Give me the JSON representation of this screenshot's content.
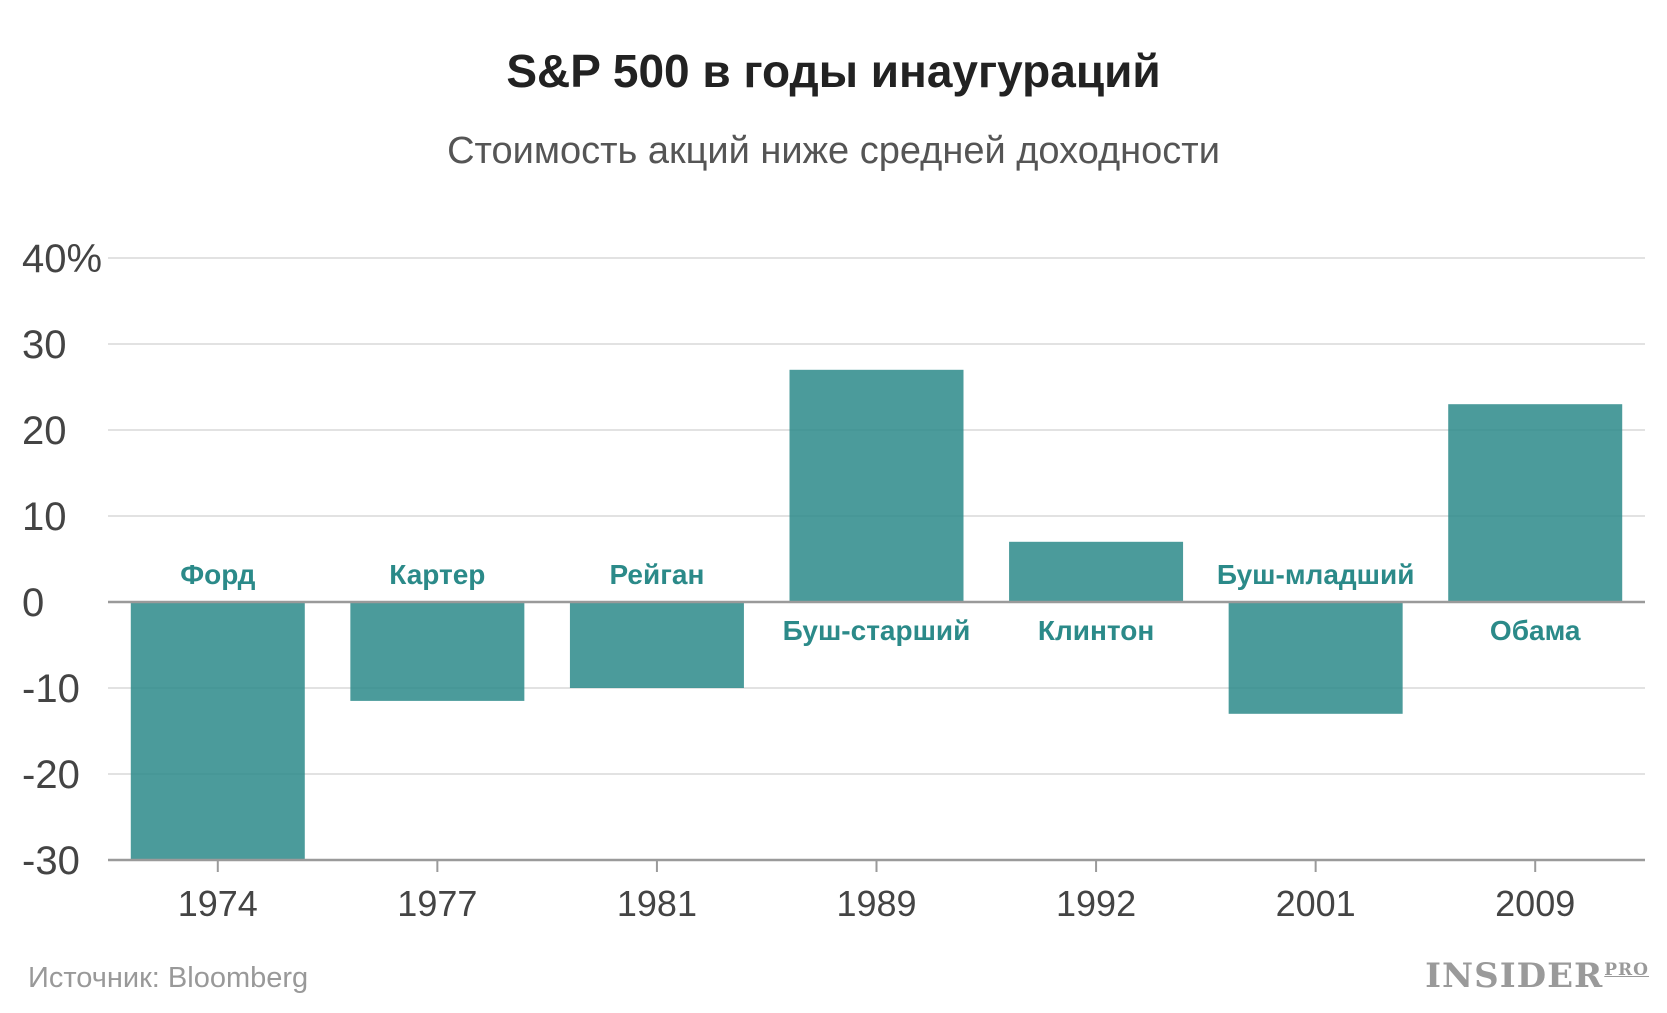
{
  "header": {
    "title": "S&P 500 в годы инаугураций",
    "subtitle": "Стоимость акций ниже средней доходности"
  },
  "footer": {
    "source": "Источник: Bloomberg",
    "logo_main": "INSIDER",
    "logo_sub": "PRO"
  },
  "colors": {
    "bar": "#2b8a89",
    "label": "#2b8a89",
    "grid": "#e2e2e2",
    "axis": "#9a9a9a"
  },
  "chart_data": {
    "type": "bar",
    "categories": [
      "1974",
      "1977",
      "1981",
      "1989",
      "1992",
      "2001",
      "2009"
    ],
    "labels": [
      "Форд",
      "Картер",
      "Рейган",
      "Буш-старший",
      "Клинтон",
      "Буш-младший",
      "Обама"
    ],
    "values": [
      -30,
      -11.5,
      -10,
      27,
      7,
      -13,
      23
    ],
    "yticks": [
      -30,
      -20,
      -10,
      0,
      10,
      20,
      30,
      40
    ],
    "ytick_labels": [
      "-30",
      "-20",
      "-10",
      "0",
      "10",
      "20",
      "30",
      "40%"
    ],
    "ylim": [
      -30,
      40
    ],
    "grid": true,
    "title": "S&P 500 в годы инаугураций",
    "subtitle": "Стоимость акций ниже средней доходности",
    "xlabel": "",
    "ylabel": ""
  }
}
